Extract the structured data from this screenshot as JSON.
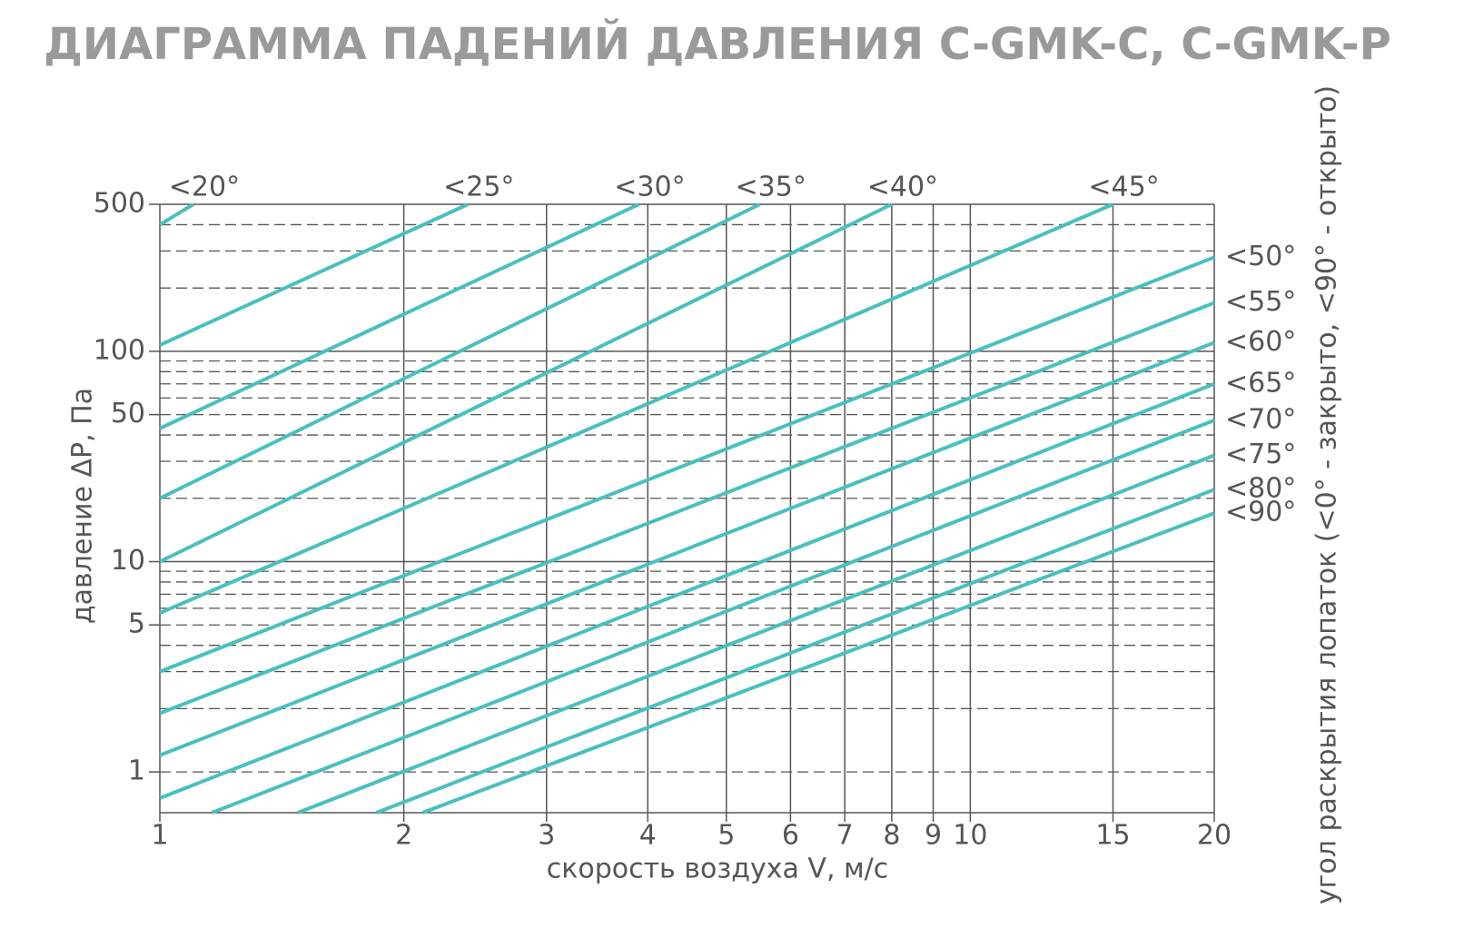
{
  "chart_data": {
    "type": "line",
    "title": "ДИАГРАММА ПАДЕНИЙ ДАВЛЕНИЯ C-GMK-C, C-GMK-P",
    "x_label": "скорость воздуха V, м/с",
    "y_label": "давление ΔP, Па",
    "right_label": "угол раскрытия лопаток (<0° - закрыто, <90° - открыто)",
    "log_x": true,
    "log_y": true,
    "xlim": [
      1,
      20
    ],
    "ylim": [
      0.64,
      500
    ],
    "xticks": [
      1,
      2,
      3,
      4,
      5,
      6,
      7,
      8,
      9,
      10,
      15,
      20
    ],
    "yticks": [
      1,
      5,
      10,
      50,
      100,
      500
    ],
    "grid_solid_y": [
      10,
      100,
      500
    ],
    "grid_dashed_y": [
      1,
      2,
      3,
      4,
      5,
      6,
      7,
      8,
      9,
      20,
      30,
      40,
      50,
      60,
      70,
      80,
      90,
      200,
      300,
      400
    ],
    "series": [
      {
        "name": "<20°",
        "color": "#4bbfbf",
        "x": [
          1,
          1.1
        ],
        "values": [
          400,
          500
        ]
      },
      {
        "name": "<25°",
        "color": "#4bbfbf",
        "x": [
          1,
          2.4
        ],
        "values": [
          107,
          500
        ]
      },
      {
        "name": "<30°",
        "color": "#4bbfbf",
        "x": [
          1,
          3.9
        ],
        "values": [
          43,
          500
        ]
      },
      {
        "name": "<35°",
        "color": "#4bbfbf",
        "x": [
          1,
          5.5
        ],
        "values": [
          20,
          500
        ]
      },
      {
        "name": "<40°",
        "color": "#4bbfbf",
        "x": [
          1,
          8
        ],
        "values": [
          10,
          500
        ]
      },
      {
        "name": "<45°",
        "color": "#4bbfbf",
        "x": [
          1,
          15
        ],
        "values": [
          5.7,
          500
        ]
      },
      {
        "name": "<50°",
        "color": "#4bbfbf",
        "x": [
          1,
          20
        ],
        "values": [
          3,
          280
        ]
      },
      {
        "name": "<55°",
        "color": "#4bbfbf",
        "x": [
          1,
          20
        ],
        "values": [
          1.9,
          170
        ]
      },
      {
        "name": "<60°",
        "color": "#4bbfbf",
        "x": [
          1,
          20
        ],
        "values": [
          1.2,
          110
        ]
      },
      {
        "name": "<65°",
        "color": "#4bbfbf",
        "x": [
          1,
          20
        ],
        "values": [
          0.75,
          70
        ]
      },
      {
        "name": "<70°",
        "color": "#4bbfbf",
        "x": [
          1.16,
          20
        ],
        "values": [
          0.64,
          47
        ]
      },
      {
        "name": "<75°",
        "color": "#4bbfbf",
        "x": [
          1.48,
          20
        ],
        "values": [
          0.64,
          32
        ]
      },
      {
        "name": "<80°",
        "color": "#4bbfbf",
        "x": [
          1.85,
          20
        ],
        "values": [
          0.64,
          22
        ]
      },
      {
        "name": "<90°",
        "color": "#4bbfbf",
        "x": [
          2.11,
          20
        ],
        "values": [
          0.64,
          17
        ]
      }
    ]
  }
}
